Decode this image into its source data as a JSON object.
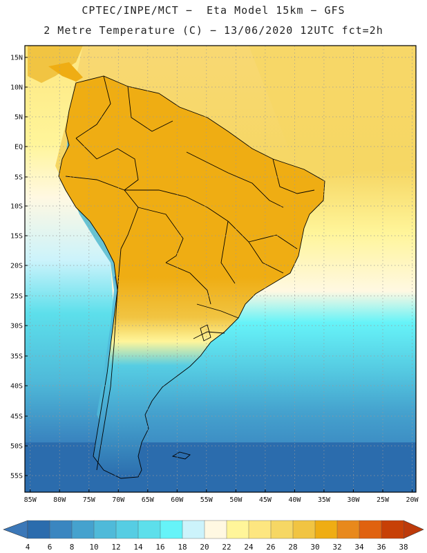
{
  "title_line1": "CPTEC/INPE/MCT −  Eta Model 15km − GFS",
  "title_line2": "2 Metre Temperature (C) − 13/06/2020 12UTC fct=2h",
  "lat_labels": [
    "15N",
    "10N",
    "5N",
    "EQ",
    "5S",
    "10S",
    "15S",
    "20S",
    "25S",
    "30S",
    "35S",
    "40S",
    "45S",
    "50S",
    "55S"
  ],
  "lon_labels": [
    "85W",
    "80W",
    "75W",
    "70W",
    "65W",
    "60W",
    "55W",
    "50W",
    "45W",
    "40W",
    "35W",
    "30W",
    "25W",
    "20W"
  ],
  "colorbar": {
    "labels": [
      "4",
      "6",
      "8",
      "10",
      "12",
      "14",
      "16",
      "18",
      "20",
      "22",
      "24",
      "26",
      "28",
      "30",
      "32",
      "34",
      "36",
      "38"
    ],
    "colors": [
      "#2b6cad",
      "#3a86c0",
      "#45a2ce",
      "#4fbad9",
      "#56cde3",
      "#5ddfeb",
      "#66f3f8",
      "#ccf3fb",
      "#fff8e2",
      "#fff59a",
      "#fde680",
      "#f6d764",
      "#f1c442",
      "#efad13",
      "#e8891c",
      "#e0620f",
      "#c74006"
    ],
    "low_color": "#3c78b8",
    "high_color": "#bd3a0a"
  },
  "colors": {
    "continent_warm": "#efad13",
    "continent_hot": "#e8891c",
    "andes_cold": "#45a2ce",
    "andes_snow": "#ccf3fb",
    "ocean_north": "#fde680",
    "ocean_mid": "#fff59a",
    "ocean_south": "#4fbad9",
    "ocean_far_south": "#2b6cad",
    "borders": "#000000"
  }
}
